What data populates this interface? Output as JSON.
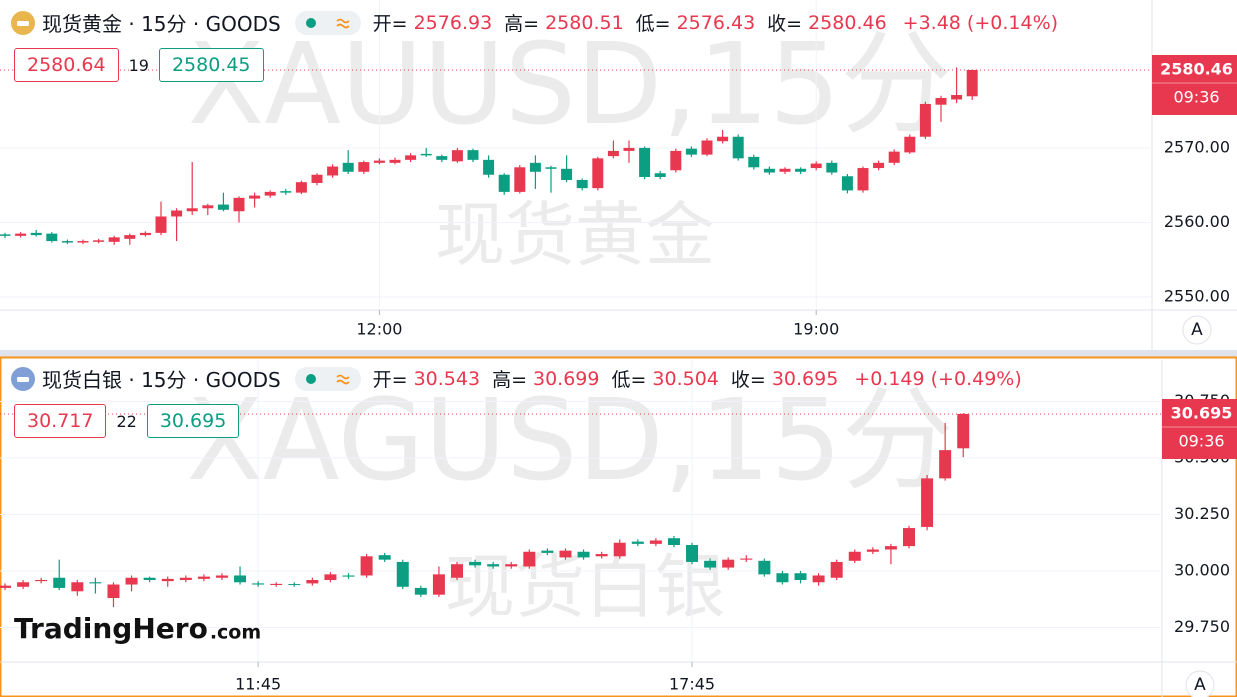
{
  "chart_data": [
    {
      "type": "candlestick",
      "title": "现货黄金 · 15分 · GOODS",
      "stats": [
        {
          "label": "开=",
          "value": 2576.93
        },
        {
          "label": "高=",
          "value": 2580.51
        },
        {
          "label": "低=",
          "value": 2576.43
        },
        {
          "label": "收=",
          "value": 2580.46
        }
      ],
      "change": "+3.48 (+0.14%)",
      "sell": 2580.64,
      "spread": 19,
      "buy": 2580.45,
      "last_price": 2580.46,
      "countdown": "09:36",
      "watermark": "XAUUSD,15分",
      "watermark_name": "现货黄金",
      "scale_button": "A",
      "up_color": "#e8384f",
      "down_color": "#0b9e82",
      "icon_color": "#e8b64c",
      "categories": [
        null,
        null,
        null,
        null,
        null,
        null,
        null,
        null,
        null,
        null,
        null,
        null,
        null,
        null,
        null,
        null,
        null,
        null,
        null,
        null,
        null,
        null,
        null,
        null,
        "12:00",
        null,
        null,
        null,
        null,
        null,
        null,
        null,
        null,
        null,
        null,
        null,
        null,
        null,
        null,
        null,
        null,
        null,
        null,
        null,
        null,
        null,
        null,
        null,
        null,
        null,
        null,
        null,
        "19:00",
        null,
        null,
        null,
        null,
        null,
        null,
        null,
        null,
        null,
        null
      ],
      "open": [
        2558.4,
        2558.2,
        2558.6,
        2558.5,
        2557.5,
        2557.3,
        2557.4,
        2557.4,
        2557.8,
        2558.3,
        2558.6,
        2560.8,
        2561.5,
        2561.9,
        2562.4,
        2561.5,
        2563.2,
        2563.6,
        2564.2,
        2564.0,
        2565.3,
        2566.3,
        2568.0,
        2566.8,
        2568.0,
        2568.0,
        2568.4,
        2569.2,
        2568.9,
        2568.2,
        2569.7,
        2568.4,
        2566.4,
        2564.1,
        2568.0,
        2567.4,
        2567.2,
        2565.7,
        2564.6,
        2568.9,
        2569.6,
        2570.0,
        2566.6,
        2567.0,
        2569.9,
        2569.1,
        2570.9,
        2571.5,
        2568.8,
        2567.2,
        2566.8,
        2567.2,
        2567.3,
        2568.0,
        2566.2,
        2564.3,
        2567.3,
        2568.0,
        2569.4,
        2571.5,
        2575.8,
        2576.5,
        2576.93
      ],
      "high": [
        2558.6,
        2558.7,
        2559.0,
        2558.7,
        2557.7,
        2557.7,
        2557.8,
        2558.2,
        2558.5,
        2558.8,
        2562.8,
        2561.9,
        2568.1,
        2562.5,
        2564.0,
        2563.5,
        2564.0,
        2564.3,
        2564.5,
        2565.6,
        2566.6,
        2567.8,
        2569.7,
        2568.3,
        2568.6,
        2568.7,
        2569.3,
        2570.0,
        2569.1,
        2570.0,
        2569.9,
        2569.0,
        2566.6,
        2567.7,
        2569.0,
        2567.6,
        2569.0,
        2565.9,
        2568.8,
        2571.0,
        2571.0,
        2570.2,
        2566.9,
        2569.9,
        2570.2,
        2571.3,
        2572.4,
        2571.8,
        2569.1,
        2567.5,
        2567.4,
        2567.4,
        2568.2,
        2568.3,
        2566.5,
        2567.5,
        2568.3,
        2569.8,
        2571.8,
        2576.2,
        2577.0,
        2580.8,
        2580.51
      ],
      "low": [
        2557.9,
        2558.0,
        2558.1,
        2557.3,
        2557.1,
        2557.1,
        2557.2,
        2557.0,
        2557.0,
        2558.1,
        2558.3,
        2557.5,
        2561.0,
        2561.0,
        2561.5,
        2560.0,
        2562.0,
        2563.3,
        2563.7,
        2563.8,
        2565.0,
        2566.0,
        2566.5,
        2566.5,
        2567.8,
        2567.8,
        2568.1,
        2568.8,
        2568.1,
        2568.0,
        2568.1,
        2566.0,
        2563.7,
        2563.9,
        2564.5,
        2564.0,
        2565.4,
        2564.3,
        2564.3,
        2568.6,
        2568.0,
        2565.8,
        2565.8,
        2566.7,
        2568.8,
        2568.9,
        2570.6,
        2568.3,
        2567.1,
        2566.4,
        2566.5,
        2566.5,
        2567.0,
        2566.4,
        2563.9,
        2564.0,
        2567.0,
        2567.7,
        2569.2,
        2571.2,
        2573.5,
        2576.0,
        2576.43
      ],
      "close": [
        2558.2,
        2558.5,
        2558.3,
        2557.5,
        2557.3,
        2557.5,
        2557.6,
        2558.0,
        2558.3,
        2558.6,
        2560.8,
        2561.6,
        2561.9,
        2562.3,
        2561.7,
        2563.3,
        2563.6,
        2564.1,
        2564.0,
        2565.4,
        2566.4,
        2567.5,
        2566.8,
        2568.1,
        2568.3,
        2568.4,
        2569.0,
        2569.0,
        2568.4,
        2569.7,
        2568.4,
        2566.4,
        2564.1,
        2567.4,
        2566.8,
        2567.2,
        2565.7,
        2564.6,
        2568.6,
        2569.6,
        2570.0,
        2566.1,
        2566.1,
        2569.6,
        2569.1,
        2571.0,
        2571.5,
        2568.6,
        2567.4,
        2566.7,
        2567.2,
        2566.8,
        2567.9,
        2566.7,
        2564.3,
        2567.3,
        2568.0,
        2569.5,
        2571.5,
        2575.9,
        2576.7,
        2577.1,
        2580.46
      ],
      "ylim": [
        2548.25,
        2589.85
      ],
      "yticks": [
        {
          "value": 2550,
          "label": "2550.00"
        },
        {
          "value": 2560,
          "label": "2560.00"
        },
        {
          "value": 2570,
          "label": "2570.00"
        }
      ],
      "grid": true
    },
    {
      "type": "candlestick",
      "title": "现货白银 · 15分 · GOODS",
      "stats": [
        {
          "label": "开=",
          "value": 30.543
        },
        {
          "label": "高=",
          "value": 30.699
        },
        {
          "label": "低=",
          "value": 30.504
        },
        {
          "label": "收=",
          "value": 30.695
        }
      ],
      "change": "+0.149 (+0.49%)",
      "sell": 30.717,
      "spread": 22,
      "buy": 30.695,
      "last_price": 30.695,
      "countdown": "09:36",
      "watermark": "XAGUSD,15分",
      "watermark_name": "现货白银",
      "scale_button": "A",
      "up_color": "#e8384f",
      "down_color": "#0b9e82",
      "icon_color": "#7f9fd6",
      "categories": [
        null,
        null,
        null,
        null,
        null,
        null,
        null,
        null,
        null,
        null,
        null,
        null,
        null,
        null,
        "11:45",
        null,
        null,
        null,
        null,
        null,
        null,
        null,
        null,
        null,
        null,
        null,
        null,
        null,
        null,
        null,
        null,
        null,
        null,
        null,
        null,
        null,
        null,
        null,
        "17:45",
        null,
        null,
        null,
        null,
        null,
        null,
        null,
        null,
        null,
        null,
        null,
        null,
        null,
        null,
        null
      ],
      "open": [
        29.925,
        29.93,
        29.955,
        29.97,
        29.91,
        29.95,
        29.88,
        29.94,
        29.97,
        29.955,
        29.96,
        29.965,
        29.97,
        29.98,
        29.945,
        29.938,
        29.942,
        29.945,
        29.96,
        29.98,
        29.98,
        30.07,
        30.04,
        29.925,
        29.895,
        29.97,
        30.04,
        30.03,
        30.02,
        30.02,
        30.09,
        30.06,
        30.085,
        30.065,
        30.065,
        30.13,
        30.12,
        30.145,
        30.115,
        30.045,
        30.015,
        30.05,
        30.045,
        29.99,
        29.99,
        29.95,
        29.97,
        30.045,
        30.085,
        30.095,
        30.11,
        30.195,
        30.41,
        30.543
      ],
      "high": [
        29.945,
        29.96,
        29.97,
        30.05,
        29.96,
        29.97,
        29.95,
        29.98,
        29.975,
        29.975,
        29.98,
        29.985,
        29.99,
        30.02,
        29.955,
        29.95,
        29.95,
        29.97,
        29.995,
        29.99,
        30.075,
        30.08,
        30.05,
        29.935,
        30.02,
        30.04,
        30.05,
        30.04,
        30.04,
        30.095,
        30.1,
        30.1,
        30.095,
        30.085,
        30.14,
        30.14,
        30.145,
        30.155,
        30.125,
        30.055,
        30.06,
        30.07,
        30.055,
        30.0,
        30.0,
        29.99,
        30.05,
        30.095,
        30.105,
        30.12,
        30.2,
        30.425,
        30.655,
        30.699
      ],
      "low": [
        29.915,
        29.92,
        29.945,
        29.915,
        29.89,
        29.9,
        29.84,
        29.91,
        29.95,
        29.93,
        29.95,
        29.955,
        29.96,
        29.94,
        29.93,
        29.93,
        29.93,
        29.935,
        29.95,
        29.965,
        29.97,
        30.04,
        29.92,
        29.885,
        29.885,
        29.96,
        30.015,
        30.01,
        30.01,
        30.01,
        30.07,
        30.05,
        30.05,
        30.055,
        30.055,
        30.11,
        30.11,
        30.105,
        30.03,
        30.005,
        30.005,
        30.04,
        29.975,
        29.94,
        29.945,
        29.935,
        29.96,
        30.035,
        30.075,
        30.03,
        30.1,
        30.18,
        30.4,
        30.504
      ],
      "close": [
        29.935,
        29.95,
        29.96,
        29.925,
        29.95,
        29.945,
        29.94,
        29.97,
        29.96,
        29.965,
        29.97,
        29.975,
        29.98,
        29.95,
        29.94,
        29.943,
        29.938,
        29.96,
        29.985,
        29.975,
        30.065,
        30.05,
        29.93,
        29.895,
        29.985,
        30.03,
        30.025,
        30.02,
        30.03,
        30.085,
        30.08,
        30.09,
        30.06,
        30.075,
        30.125,
        30.12,
        30.135,
        30.115,
        30.04,
        30.015,
        30.05,
        30.055,
        29.985,
        29.95,
        29.96,
        29.98,
        30.04,
        30.085,
        30.095,
        30.11,
        30.19,
        30.41,
        30.535,
        30.695
      ],
      "ylim": [
        29.597,
        30.934
      ],
      "yticks": [
        {
          "value": 29.75,
          "label": "29.750"
        },
        {
          "value": 30,
          "label": "30.000"
        },
        {
          "value": 30.25,
          "label": "30.250"
        },
        {
          "value": 30.5,
          "label": "30.500"
        },
        {
          "value": 30.75,
          "label": "30.750"
        }
      ],
      "grid": true
    }
  ],
  "branding": {
    "name": "TradingHero",
    "domain": ".com"
  }
}
